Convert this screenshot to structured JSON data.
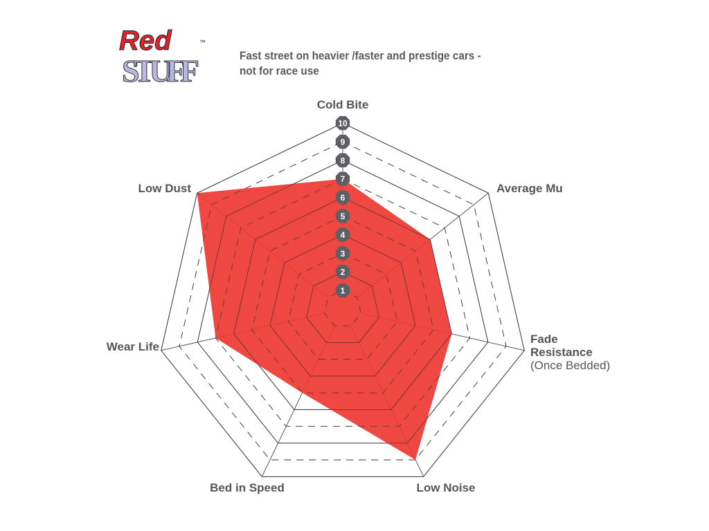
{
  "logo": {
    "text_top": "Red",
    "text_bottom": "STUFF",
    "tm": "™",
    "colors": {
      "red": "#e5202a",
      "lavender": "#b8b8e0"
    }
  },
  "subtitle": [
    "Fast street on heavier /faster and prestige cars -",
    "not for race use"
  ],
  "chart_data": {
    "type": "radar",
    "axes": [
      "Cold Bite",
      "Average Mu",
      "Fade Resistance",
      "Low Noise",
      "Bed in Speed",
      "Wear Life",
      "Low Dust"
    ],
    "axis_sublabels": {
      "Fade Resistance": "(Once Bedded)"
    },
    "values": [
      7,
      6,
      6,
      9,
      5,
      7,
      10
    ],
    "range": [
      0,
      10
    ],
    "tick_labels": [
      "1",
      "2",
      "3",
      "4",
      "5",
      "6",
      "7",
      "8",
      "9",
      "10"
    ],
    "fill_color": "#ee3833",
    "tick_badge_color": "#5d5f63"
  }
}
